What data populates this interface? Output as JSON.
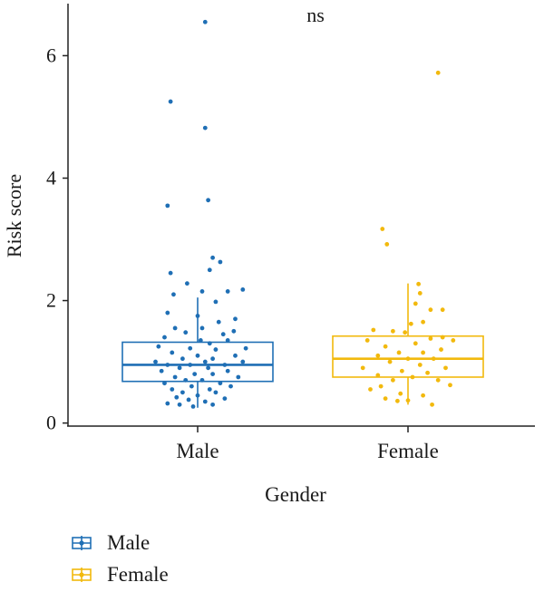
{
  "chart_data": {
    "type": "box",
    "xlabel": "Gender",
    "ylabel": "Risk score",
    "annotation": "ns",
    "categories": [
      "Male",
      "Female"
    ],
    "yticks": [
      0,
      2,
      4,
      6
    ],
    "ylim": [
      -0.05,
      6.85
    ],
    "legend": {
      "placement": "bottom-left",
      "entries": [
        "Male",
        "Female"
      ]
    },
    "series": [
      {
        "name": "Male",
        "color": "#1f6fb5",
        "box": {
          "whisker_low": 0.25,
          "q1": 0.68,
          "median": 0.95,
          "q3": 1.32,
          "whisker_high": 2.05
        },
        "points": [
          [
            0.55,
            6.55
          ],
          [
            0.32,
            5.25
          ],
          [
            0.55,
            4.82
          ],
          [
            0.57,
            3.64
          ],
          [
            0.3,
            3.55
          ],
          [
            0.6,
            2.7
          ],
          [
            0.32,
            2.45
          ],
          [
            0.43,
            2.28
          ],
          [
            0.53,
            2.15
          ],
          [
            0.7,
            2.15
          ],
          [
            0.34,
            2.1
          ],
          [
            0.65,
            2.63
          ],
          [
            0.58,
            2.5
          ],
          [
            0.8,
            2.18
          ],
          [
            0.62,
            1.98
          ],
          [
            0.75,
            1.7
          ],
          [
            0.5,
            1.75
          ],
          [
            0.35,
            1.55
          ],
          [
            0.53,
            1.55
          ],
          [
            0.42,
            1.48
          ],
          [
            0.67,
            1.45
          ],
          [
            0.28,
            1.4
          ],
          [
            0.7,
            1.35
          ],
          [
            0.58,
            1.3
          ],
          [
            0.24,
            1.25
          ],
          [
            0.45,
            1.22
          ],
          [
            0.62,
            1.2
          ],
          [
            0.82,
            1.22
          ],
          [
            0.33,
            1.15
          ],
          [
            0.5,
            1.1
          ],
          [
            0.75,
            1.1
          ],
          [
            0.4,
            1.05
          ],
          [
            0.6,
            1.05
          ],
          [
            0.22,
            1.0
          ],
          [
            0.55,
            1.0
          ],
          [
            0.8,
            1.0
          ],
          [
            0.3,
            0.95
          ],
          [
            0.45,
            0.95
          ],
          [
            0.68,
            0.95
          ],
          [
            0.38,
            0.9
          ],
          [
            0.57,
            0.9
          ],
          [
            0.26,
            0.85
          ],
          [
            0.7,
            0.85
          ],
          [
            0.48,
            0.8
          ],
          [
            0.6,
            0.8
          ],
          [
            0.35,
            0.75
          ],
          [
            0.77,
            0.75
          ],
          [
            0.42,
            0.7
          ],
          [
            0.53,
            0.7
          ],
          [
            0.28,
            0.65
          ],
          [
            0.65,
            0.65
          ],
          [
            0.46,
            0.6
          ],
          [
            0.72,
            0.6
          ],
          [
            0.33,
            0.55
          ],
          [
            0.58,
            0.55
          ],
          [
            0.4,
            0.5
          ],
          [
            0.62,
            0.5
          ],
          [
            0.5,
            0.45
          ],
          [
            0.36,
            0.42
          ],
          [
            0.68,
            0.4
          ],
          [
            0.44,
            0.38
          ],
          [
            0.55,
            0.35
          ],
          [
            0.3,
            0.32
          ],
          [
            0.6,
            0.3
          ],
          [
            0.47,
            0.27
          ],
          [
            0.38,
            0.3
          ],
          [
            0.52,
            1.35
          ],
          [
            0.74,
            1.5
          ],
          [
            0.3,
            1.8
          ],
          [
            0.64,
            1.65
          ]
        ]
      },
      {
        "name": "Female",
        "color": "#f2b90d",
        "box": {
          "whisker_low": 0.3,
          "q1": 0.75,
          "median": 1.05,
          "q3": 1.42,
          "whisker_high": 2.28
        },
        "points": [
          [
            0.7,
            5.72
          ],
          [
            0.33,
            3.17
          ],
          [
            0.36,
            2.92
          ],
          [
            0.57,
            2.27
          ],
          [
            0.58,
            2.12
          ],
          [
            0.55,
            1.95
          ],
          [
            0.73,
            1.85
          ],
          [
            0.65,
            1.85
          ],
          [
            0.6,
            1.65
          ],
          [
            0.52,
            1.62
          ],
          [
            0.4,
            1.5
          ],
          [
            0.27,
            1.52
          ],
          [
            0.48,
            1.48
          ],
          [
            0.73,
            1.4
          ],
          [
            0.65,
            1.38
          ],
          [
            0.8,
            1.35
          ],
          [
            0.23,
            1.35
          ],
          [
            0.55,
            1.3
          ],
          [
            0.35,
            1.25
          ],
          [
            0.72,
            1.2
          ],
          [
            0.44,
            1.15
          ],
          [
            0.6,
            1.15
          ],
          [
            0.3,
            1.1
          ],
          [
            0.5,
            1.05
          ],
          [
            0.67,
            1.05
          ],
          [
            0.38,
            1.0
          ],
          [
            0.58,
            0.95
          ],
          [
            0.2,
            0.9
          ],
          [
            0.75,
            0.9
          ],
          [
            0.46,
            0.85
          ],
          [
            0.63,
            0.82
          ],
          [
            0.3,
            0.78
          ],
          [
            0.53,
            0.75
          ],
          [
            0.4,
            0.7
          ],
          [
            0.7,
            0.7
          ],
          [
            0.78,
            0.62
          ],
          [
            0.25,
            0.55
          ],
          [
            0.45,
            0.48
          ],
          [
            0.6,
            0.45
          ],
          [
            0.35,
            0.4
          ],
          [
            0.5,
            0.37
          ],
          [
            0.43,
            0.36
          ],
          [
            0.66,
            0.3
          ],
          [
            0.32,
            0.6
          ]
        ]
      }
    ]
  }
}
